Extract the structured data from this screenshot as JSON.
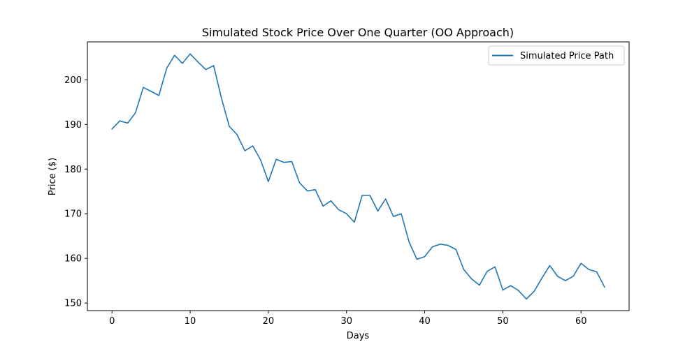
{
  "chart_data": {
    "type": "line",
    "title": "Simulated Stock Price Over One Quarter (OO Approach)",
    "xlabel": "Days",
    "ylabel": "Price ($)",
    "xlim": [
      -3.15,
      66.15
    ],
    "ylim": [
      148.3,
      208.5
    ],
    "xticks": [
      0,
      10,
      20,
      30,
      40,
      50,
      60
    ],
    "yticks": [
      150,
      160,
      170,
      180,
      190,
      200
    ],
    "grid": false,
    "legend_position": "top-right",
    "line_color": "#1f77b4",
    "series": [
      {
        "name": "Simulated Price Path",
        "x": [
          0,
          1,
          2,
          3,
          4,
          5,
          6,
          7,
          8,
          9,
          10,
          11,
          12,
          13,
          14,
          15,
          16,
          17,
          18,
          19,
          20,
          21,
          22,
          23,
          24,
          25,
          26,
          27,
          28,
          29,
          30,
          31,
          32,
          33,
          34,
          35,
          36,
          37,
          38,
          39,
          40,
          41,
          42,
          43,
          44,
          45,
          46,
          47,
          48,
          49,
          50,
          51,
          52,
          53,
          54,
          55,
          56,
          57,
          58,
          59,
          60,
          61,
          62,
          63
        ],
        "values": [
          189.0,
          190.8,
          190.3,
          192.6,
          198.3,
          197.4,
          196.5,
          202.6,
          205.5,
          203.7,
          205.8,
          204.0,
          202.3,
          203.2,
          195.9,
          189.6,
          187.7,
          184.1,
          185.2,
          182.1,
          177.2,
          182.2,
          181.5,
          181.7,
          176.9,
          175.1,
          175.4,
          171.7,
          172.9,
          170.9,
          170.0,
          168.1,
          174.1,
          174.1,
          170.6,
          173.3,
          169.4,
          170.0,
          163.7,
          159.8,
          160.4,
          162.6,
          163.2,
          162.9,
          162.0,
          157.5,
          155.4,
          154.0,
          157.1,
          158.1,
          152.9,
          153.9,
          152.8,
          150.9,
          152.6,
          155.6,
          158.4,
          156.0,
          155.0,
          156.0,
          158.9,
          157.5,
          157.0,
          153.6
        ]
      }
    ]
  }
}
